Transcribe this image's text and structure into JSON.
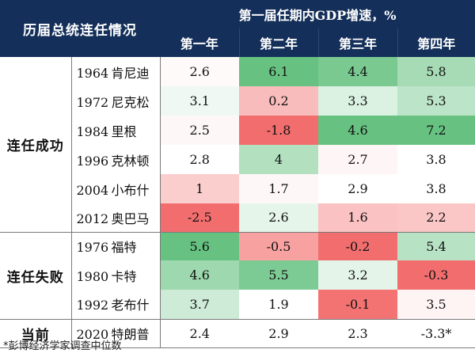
{
  "header": {
    "corner_title": "历届总统连任情况",
    "span_title": "第一届任期内GDP增速，%",
    "years": [
      "第一年",
      "第二年",
      "第三年",
      "第四年"
    ]
  },
  "groups": [
    {
      "label": "连任成功",
      "rows": [
        {
          "year": "1964",
          "name": "肯尼迪",
          "values": [
            "2.6",
            "6.1",
            "4.4",
            "5.8"
          ]
        },
        {
          "year": "1972",
          "name": "尼克松",
          "values": [
            "3.1",
            "0.2",
            "3.3",
            "5.3"
          ]
        },
        {
          "year": "1984",
          "name": "里根",
          "values": [
            "2.5",
            "-1.8",
            "4.6",
            "7.2"
          ]
        },
        {
          "year": "1996",
          "name": "克林顿",
          "values": [
            "2.8",
            "4",
            "2.7",
            "3.8"
          ]
        },
        {
          "year": "2004",
          "name": "小布什",
          "values": [
            "1",
            "1.7",
            "2.9",
            "3.8"
          ]
        },
        {
          "year": "2012",
          "name": "奥巴马",
          "values": [
            "-2.5",
            "2.6",
            "1.6",
            "2.2"
          ]
        }
      ]
    },
    {
      "label": "连任失败",
      "rows": [
        {
          "year": "1976",
          "name": "福特",
          "values": [
            "5.6",
            "-0.5",
            "-0.2",
            "5.4"
          ]
        },
        {
          "year": "1980",
          "name": "卡特",
          "values": [
            "4.6",
            "5.5",
            "3.2",
            "-0.3"
          ]
        },
        {
          "year": "1992",
          "name": "老布什",
          "values": [
            "3.7",
            "1.9",
            "-0.1",
            "3.5"
          ]
        }
      ]
    },
    {
      "label": "当前",
      "rows": [
        {
          "year": "2020",
          "name": "特朗普",
          "values": [
            "2.4",
            "2.9",
            "2.3",
            "-3.3*"
          ]
        }
      ]
    }
  ],
  "colors": {
    "header_bg": "#142f59",
    "header_text": "#ffffff",
    "green_strong": "#5fbf7b",
    "green_light": "#e4f4e8",
    "red_strong": "#f26b6b",
    "red_light": "#fde8ea"
  },
  "footnote": "*彭博经济学家调查中位数"
}
